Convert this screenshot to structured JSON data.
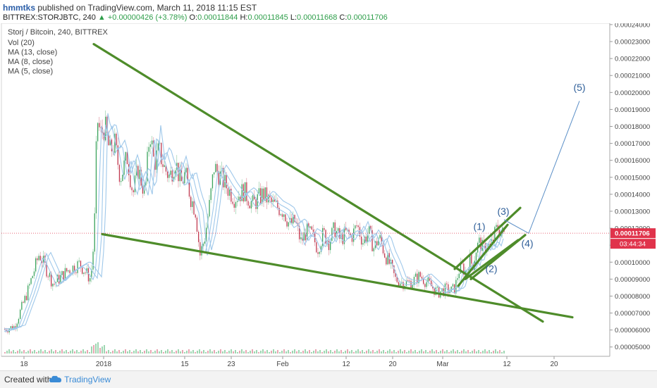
{
  "header": {
    "user": "hmmtks",
    "published": " published on TradingView.com, March 11, 2018 11:15 EST",
    "symbol": "BITTREX:STORJBTC, 240",
    "change": "+0.00000426 (+3.78%)",
    "o_label": "O:",
    "o": "0.00011844",
    "h_label": "H:",
    "h": "0.00011845",
    "l_label": "L:",
    "l": "0.00011668",
    "c_label": "C:",
    "c": "0.00011706"
  },
  "footer": {
    "created": "Created with",
    "brand": "TradingView"
  },
  "chart_data": {
    "type": "line",
    "title": "Storj / Bitcoin, 240, BITTREX",
    "indicators": [
      "Vol (20)",
      "MA (13, close)",
      "MA (8, close)",
      "MA (5, close)"
    ],
    "x_ticks": [
      "18",
      "2018",
      "15",
      "23",
      "Feb",
      "12",
      "20",
      "Mar",
      "12",
      "20"
    ],
    "y_ticks": [
      "0.00005000",
      "0.00006000",
      "0.00007000",
      "0.00008000",
      "0.00009000",
      "0.00010000",
      "0.00011000",
      "0.00012000",
      "0.00013000",
      "0.00014000",
      "0.00015000",
      "0.00016000",
      "0.00017000",
      "0.00018000",
      "0.00019000",
      "0.00020000",
      "0.00021000",
      "0.00022000",
      "0.00023000",
      "0.00024000"
    ],
    "ylim": [
      4.45e-05,
      0.0002408
    ],
    "last_price": "0.00011706",
    "countdown": "03:44:34",
    "price_path_x": [
      2,
      20,
      38,
      55,
      75,
      95,
      112,
      128,
      133,
      137,
      142,
      148,
      155,
      162,
      170,
      180,
      188,
      195,
      205,
      212,
      218,
      225,
      232,
      240,
      248,
      256,
      262,
      270,
      277,
      283,
      290,
      297,
      303,
      310,
      320,
      332,
      345,
      358,
      372,
      386,
      395,
      402,
      410,
      418,
      426,
      434,
      442,
      450,
      458,
      466,
      474,
      482,
      490,
      498,
      506,
      514,
      522,
      530,
      537,
      545,
      553,
      560,
      570,
      582,
      595,
      608,
      620,
      632,
      640,
      645,
      650,
      655,
      660,
      665,
      670,
      675,
      680,
      685,
      690,
      695,
      700,
      705,
      710,
      716
    ],
    "price_path_y": [
      6e-05,
      6.2e-05,
      8.2e-05,
      0.000105,
      8.7e-05,
      9.5e-05,
      9.9e-05,
      9e-05,
      0.000115,
      0.000185,
      0.000175,
      0.00018,
      0.000165,
      0.00017,
      0.00015,
      0.000162,
      0.00014,
      0.000155,
      0.00014,
      0.000178,
      0.000158,
      0.000166,
      0.000156,
      0.00015,
      0.00016,
      0.000146,
      0.000152,
      0.000138,
      0.00013,
      0.000104,
      0.000115,
      0.000135,
      0.000156,
      0.000152,
      0.000145,
      0.000138,
      0.000142,
      0.000134,
      0.00014,
      0.000134,
      0.000132,
      0.00013,
      0.000122,
      0.000124,
      0.000112,
      0.000118,
      0.000116,
      0.000108,
      0.000117,
      0.000112,
      0.00012,
      0.000113,
      0.000117,
      0.000115,
      0.000122,
      0.000112,
      0.000118,
      0.000108,
      0.000115,
      0.000105,
      9.8e-05,
      9e-05,
      8.8e-05,
      8.8e-05,
      9.2e-05,
      8.7e-05,
      8.2e-05,
      8.4e-05,
      8.3e-05,
      8.5e-05,
      9.5e-05,
      9.7e-05,
      9.4e-05,
      0.000102,
      9.8e-05,
      0.000108,
      0.000112,
      0.000107,
      0.000111,
      0.000108,
      0.000115,
      0.000121,
      0.000117,
      0.000117
    ],
    "trendlines": [
      {
        "x1": 133,
        "y1": 0.0002285,
        "x2": 770,
        "y2": 6.5e-05
      },
      {
        "x1": 145,
        "y1": 0.0001165,
        "x2": 812,
        "y2": 6.75e-05
      },
      {
        "x1": 645,
        "y1": 9.6e-05,
        "x2": 738,
        "y2": 0.000132
      },
      {
        "x1": 660,
        "y1": 9e-05,
        "x2": 735,
        "y2": 0.000113
      },
      {
        "x1": 650,
        "y1": 8.6e-05,
        "x2": 720,
        "y2": 0.000122
      },
      {
        "x1": 668,
        "y1": 9e-05,
        "x2": 745,
        "y2": 0.000116
      }
    ],
    "wave_labels": [
      {
        "text": "(1)",
        "x": 680,
        "y": 0.000119
      },
      {
        "text": "(2)",
        "x": 697,
        "y": 9.4e-05
      },
      {
        "text": "(3)",
        "x": 714,
        "y": 0.000128
      },
      {
        "text": "(4)",
        "x": 748,
        "y": 0.000109
      },
      {
        "text": "(5)",
        "x": 822,
        "y": 0.000201
      }
    ],
    "projection_path_x": [
      715,
      750,
      822
    ],
    "projection_path_y": [
      0.000125,
      0.000117,
      0.000195
    ],
    "colors": {
      "trendline": "#4e8c2a",
      "up": "#3aa35c",
      "down": "#c0394f",
      "ma": "#9fc8ea",
      "last_price": "#e0334b",
      "projection": "#5b8fc7"
    }
  }
}
